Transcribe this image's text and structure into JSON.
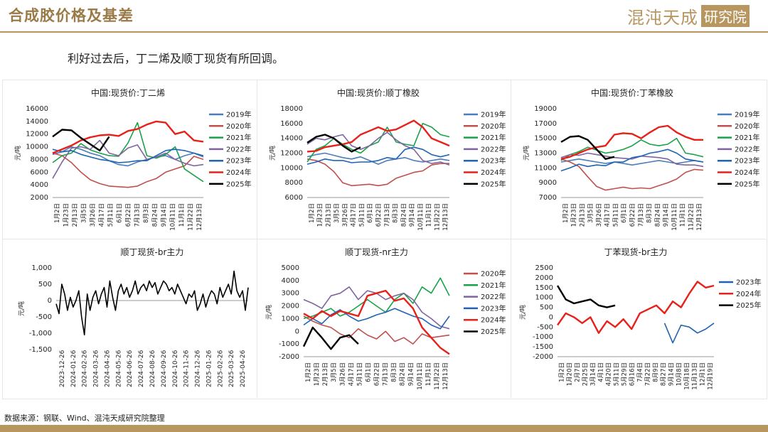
{
  "header": {
    "title": "合成胶价格及基差",
    "logo_text": "混沌天成",
    "logo_box": "研究院"
  },
  "subtitle": "利好过去后，丁二烯及顺丁现货有所回调。",
  "source": "数据来源：钢联、Wind、混沌天成研究院整理",
  "colors": {
    "2019": "#4a7ebb",
    "2020": "#c0504d",
    "2021": "#1aa34a",
    "2022": "#8064a2",
    "2023": "#1f63b5",
    "2024": "#e8201a",
    "2025": "#000000"
  },
  "chart_data": [
    {
      "type": "line",
      "title": "中国:现货价:丁二烯",
      "ylabel": "元/吨",
      "ylim": [
        2000,
        16000
      ],
      "yticks": [
        "16000",
        "14000",
        "12000",
        "10000",
        "8000",
        "6000",
        "4000",
        "2000"
      ],
      "xticks": [
        "1月2日",
        "1月23日",
        "2月13日",
        "3月5日",
        "3月26日",
        "4月17日",
        "5月11日",
        "6月1日",
        "6月22日",
        "7月13日",
        "8月3日",
        "8月24日",
        "9月14日",
        "10月11日",
        "11月1日",
        "11月22日",
        "12月13日"
      ],
      "series": [
        {
          "name": "2019年",
          "values": [
            8800,
            9200,
            10000,
            9600,
            9000,
            8600,
            7800,
            7200,
            7000,
            7600,
            8000,
            8400,
            8600,
            8000,
            8600,
            9000,
            8400
          ]
        },
        {
          "name": "2020年",
          "values": [
            9000,
            8600,
            7500,
            6000,
            4800,
            4200,
            3800,
            3700,
            3600,
            3800,
            4500,
            5000,
            6000,
            6500,
            7000,
            8500,
            8000
          ]
        },
        {
          "name": "2021年",
          "values": [
            7500,
            8600,
            9000,
            10500,
            9500,
            9000,
            8600,
            8500,
            10600,
            13800,
            8600,
            8200,
            8800,
            10000,
            6500,
            5500,
            4500
          ]
        },
        {
          "name": "2022年",
          "values": [
            5000,
            7600,
            9800,
            10000,
            9600,
            11000,
            9000,
            8600,
            9800,
            10300,
            8000,
            8400,
            9000,
            8000,
            7400,
            7000,
            7200
          ]
        },
        {
          "name": "2023年",
          "values": [
            9600,
            9200,
            9400,
            8800,
            8400,
            8000,
            7800,
            7500,
            7600,
            7800,
            7800,
            8600,
            9400,
            9600,
            9400,
            9000,
            8600
          ]
        },
        {
          "name": "2024年",
          "values": [
            9000,
            9600,
            10200,
            11000,
            11500,
            11800,
            11900,
            11700,
            12500,
            12800,
            13500,
            14000,
            13800,
            12000,
            12400,
            11000,
            10800
          ]
        },
        {
          "name": "2025年",
          "values": [
            11600,
            12700,
            12600,
            11400,
            10400,
            9400,
            11600
          ]
        }
      ]
    },
    {
      "type": "line",
      "title": "中国:现货价:顺丁橡胶",
      "ylabel": "元/吨",
      "ylim": [
        6000,
        18000
      ],
      "yticks": [
        "18000",
        "16000",
        "14000",
        "12000",
        "10000",
        "8000",
        "6000"
      ],
      "xticks": [
        "1月2日",
        "1月23日",
        "2月13日",
        "3月5日",
        "3月26日",
        "4月17日",
        "5月11日",
        "6月1日",
        "6月22日",
        "7月13日",
        "8月3日",
        "8月24日",
        "9月14日",
        "10月11日",
        "11月1日",
        "11月22日",
        "12月13日"
      ],
      "series": [
        {
          "name": "2019年",
          "values": [
            11500,
            11800,
            12000,
            11700,
            11400,
            11200,
            11500,
            11000,
            10500,
            11000,
            11200,
            11400,
            11000,
            10800,
            11000,
            11200,
            11000
          ]
        },
        {
          "name": "2020年",
          "values": [
            11200,
            11000,
            10500,
            9500,
            8000,
            7600,
            7700,
            7800,
            7600,
            7800,
            8600,
            9000,
            9400,
            9600,
            10400,
            10600,
            10600
          ]
        },
        {
          "name": "2021年",
          "values": [
            10800,
            12500,
            13000,
            14000,
            13200,
            12500,
            12000,
            13000,
            13500,
            15500,
            13500,
            13200,
            13000,
            16000,
            15500,
            14500,
            14200
          ]
        },
        {
          "name": "2022年",
          "values": [
            13200,
            14000,
            13800,
            14200,
            14500,
            13000,
            12500,
            13000,
            14000,
            14800,
            13800,
            13000,
            12500,
            11000,
            10600,
            10800,
            10400
          ]
        },
        {
          "name": "2023年",
          "values": [
            10500,
            10800,
            11200,
            11000,
            11000,
            10700,
            10800,
            10800,
            11000,
            11400,
            11200,
            12500,
            12800,
            12500,
            11800,
            11500,
            11800
          ]
        },
        {
          "name": "2024年",
          "values": [
            12200,
            12300,
            12800,
            13000,
            13200,
            13500,
            14500,
            15000,
            15500,
            15000,
            15200,
            15800,
            16400,
            15500,
            14000,
            13500,
            13000
          ]
        },
        {
          "name": "2025年",
          "values": [
            13400,
            14200,
            14500,
            14000,
            13000,
            12200,
            12800
          ]
        }
      ]
    },
    {
      "type": "line",
      "title": "中国:现货价:丁苯橡胶",
      "ylabel": "元/吨",
      "ylim": [
        7000,
        19000
      ],
      "yticks": [
        "19000",
        "17000",
        "15000",
        "13000",
        "11000",
        "9000",
        "7000"
      ],
      "xticks": [
        "1月2日",
        "1月23日",
        "2月13日",
        "3月5日",
        "3月26日",
        "4月17日",
        "5月11日",
        "6月1日",
        "6月22日",
        "7月13日",
        "8月3日",
        "8月24日",
        "9月14日",
        "10月11日",
        "11月1日",
        "11月22日",
        "12月13日"
      ],
      "series": [
        {
          "name": "2019年",
          "values": [
            11800,
            12000,
            12200,
            12000,
            11800,
            11600,
            11800,
            11600,
            11400,
            11600,
            11800,
            12000,
            11800,
            11600,
            11800,
            12000,
            11800
          ]
        },
        {
          "name": "2020年",
          "values": [
            12200,
            11800,
            11200,
            9800,
            8500,
            8000,
            8200,
            8400,
            8200,
            8300,
            8200,
            8600,
            9000,
            9500,
            10400,
            10800,
            10700
          ]
        },
        {
          "name": "2021年",
          "values": [
            12000,
            12800,
            13200,
            13800,
            13400,
            13000,
            13200,
            13500,
            14000,
            14800,
            14200,
            14000,
            14200,
            15000,
            13000,
            12800,
            12500
          ]
        },
        {
          "name": "2022年",
          "values": [
            12400,
            12800,
            12700,
            13000,
            12800,
            12600,
            12400,
            12300,
            12200,
            12600,
            12500,
            12400,
            12200,
            11500,
            11400,
            11400,
            11200
          ]
        },
        {
          "name": "2023年",
          "values": [
            10600,
            11000,
            11500,
            11200,
            11400,
            11300,
            11800,
            11800,
            12400,
            12600,
            13000,
            13200,
            13500,
            13000,
            12200,
            12000,
            11800
          ]
        },
        {
          "name": "2024年",
          "values": [
            12200,
            12500,
            13000,
            13500,
            13800,
            14000,
            15500,
            15700,
            15600,
            15000,
            15800,
            16500,
            16700,
            15800,
            15200,
            14800,
            14800
          ]
        },
        {
          "name": "2025年",
          "values": [
            14500,
            15200,
            15300,
            14800,
            13500,
            12200,
            12500
          ]
        }
      ]
    },
    {
      "type": "line",
      "title": "顺丁现货-br主力",
      "ylabel": "元/吨",
      "ylim": [
        -1500,
        1000
      ],
      "yticks": [
        "1,000",
        "500",
        "0",
        "-500",
        "-1,000",
        "-1,500"
      ],
      "xticks": [
        "2023-12-26",
        "2024-01-26",
        "2024-02-26",
        "2024-03-26",
        "2024-04-26",
        "2024-05-26",
        "2024-06-26",
        "2024-07-26",
        "2024-08-26",
        "2024-09-26",
        "2024-10-26",
        "2024-11-26",
        "2024-12-26",
        "2025-01-26",
        "2025-02-26",
        "2025-03-26",
        "2025-04-26"
      ],
      "series": [
        {
          "name": "",
          "values": [
            -100,
            -400,
            500,
            200,
            -300,
            100,
            -200,
            0,
            300,
            -500,
            -1050,
            200,
            -300,
            100,
            300,
            -100,
            200,
            400,
            -200,
            600,
            100,
            -300,
            300,
            500,
            200,
            400,
            100,
            300,
            600,
            200,
            400,
            500,
            300,
            600,
            400,
            550,
            200,
            400,
            600,
            500,
            300,
            400,
            200,
            500,
            300,
            100,
            -100,
            200,
            100,
            300,
            -300,
            -100,
            200,
            -200,
            100,
            300,
            200,
            -100,
            400,
            100,
            300,
            500,
            200,
            900,
            300,
            100,
            300,
            -300,
            400
          ]
        }
      ]
    },
    {
      "type": "line",
      "title": "顺丁现货-nr主力",
      "ylabel": "元/吨",
      "ylim": [
        -2000,
        5000
      ],
      "yticks": [
        "5000",
        "4000",
        "3000",
        "2000",
        "1000",
        "0",
        "-1000",
        "-2000"
      ],
      "xticks": [
        "1月2日",
        "1月23日",
        "2月13日",
        "3月5日",
        "3月26日",
        "4月17日",
        "5月11日",
        "6月1日",
        "6月22日",
        "7月13日",
        "8月3日",
        "8月24日",
        "9月14日",
        "10月11日",
        "11月1日",
        "11月22日",
        "12月13日"
      ],
      "series": [
        {
          "name": "2020年",
          "values": [
            1200,
            800,
            500,
            300,
            -200,
            -500,
            200,
            -300,
            -600,
            0,
            -800,
            -500,
            -1000,
            -200,
            -500,
            -400,
            -300
          ]
        },
        {
          "name": "2021年",
          "values": [
            1000,
            1200,
            1500,
            1800,
            1200,
            1500,
            2000,
            2500,
            2000,
            1500,
            2500,
            3000,
            2200,
            3500,
            3000,
            4200,
            2800
          ]
        },
        {
          "name": "2022年",
          "values": [
            2500,
            2200,
            1800,
            2800,
            3000,
            3500,
            2500,
            3200,
            3000,
            2500,
            2800,
            3000,
            2500,
            1500,
            1000,
            400,
            200
          ]
        },
        {
          "name": "2023年",
          "values": [
            500,
            1000,
            600,
            1300,
            1700,
            1200,
            800,
            1000,
            1300,
            1500,
            1800,
            1500,
            1200,
            1000,
            500,
            200,
            1200
          ]
        },
        {
          "name": "2024年",
          "values": [
            1400,
            1000,
            1600,
            1200,
            1600,
            1400,
            1200,
            2800,
            3000,
            3200,
            2400,
            2600,
            1800,
            300,
            -500,
            -1300,
            -1800
          ]
        },
        {
          "name": "2025年",
          "values": [
            -1200,
            300,
            -500,
            -1400,
            -500,
            -300,
            -1000
          ]
        }
      ]
    },
    {
      "type": "line",
      "title": "丁苯现货-br主力",
      "ylabel": "元/吨",
      "ylim": [
        -2000,
        2500
      ],
      "yticks": [
        "2500",
        "2000",
        "1500",
        "1000",
        "500",
        "0",
        "-500",
        "-1000",
        "-1500",
        "-2000"
      ],
      "xticks": [
        "1月2日",
        "1月20日",
        "2月7日",
        "2月25日",
        "3月14日",
        "4月1日",
        "4月20日",
        "5月11日",
        "5月29日",
        "6月16日",
        "7月4日",
        "7月22日",
        "8月9日",
        "8月27日",
        "9月14日",
        "10月8日",
        "10月18日",
        "11月13日",
        "12月1日",
        "12月19日"
      ],
      "series": [
        {
          "name": "2023年",
          "values": [
            null,
            null,
            null,
            null,
            null,
            null,
            null,
            null,
            null,
            null,
            null,
            null,
            null,
            -300,
            -1300,
            -400,
            -500,
            -800,
            -600,
            -300
          ]
        },
        {
          "name": "2024年",
          "values": [
            -400,
            200,
            0,
            -300,
            0,
            -800,
            -200,
            -500,
            -100,
            -600,
            200,
            400,
            600,
            200,
            800,
            500,
            1200,
            1800,
            1500,
            1600
          ]
        },
        {
          "name": "2025年",
          "values": [
            1600,
            900,
            700,
            800,
            900,
            600,
            500,
            600
          ]
        }
      ]
    }
  ]
}
